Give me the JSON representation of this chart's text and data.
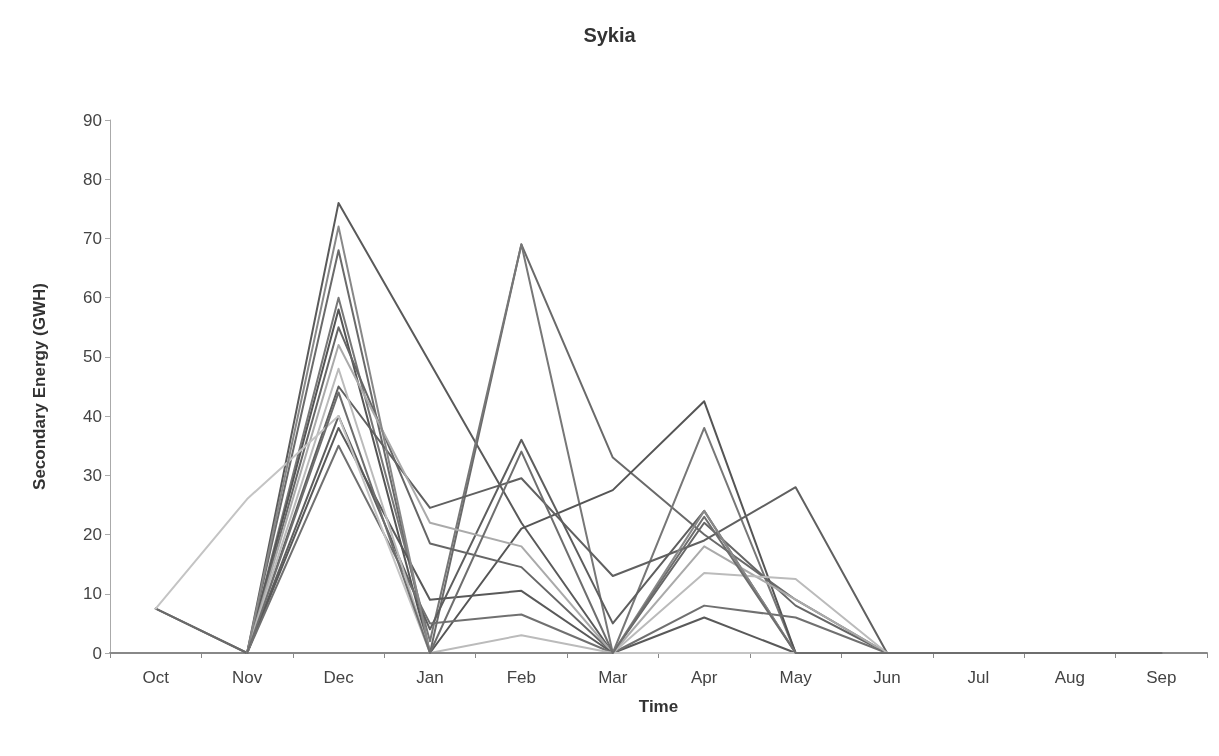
{
  "chart_data": {
    "type": "line",
    "title": "Sykia",
    "xlabel": "Time",
    "ylabel": "Secondary Energy (GWH)",
    "categories": [
      "Oct",
      "Nov",
      "Dec",
      "Jan",
      "Feb",
      "Mar",
      "Apr",
      "May",
      "Jun",
      "Jul",
      "Aug",
      "Sep"
    ],
    "ylim": [
      0,
      90
    ],
    "yticks": [
      0,
      10,
      20,
      30,
      40,
      50,
      60,
      70,
      80,
      90
    ],
    "grid": false,
    "marker": "none",
    "line_style": "solid",
    "series": [
      {
        "color": "#5a5a5a",
        "values": [
          7.5,
          0,
          76,
          49,
          22,
          0,
          0,
          0,
          0,
          0,
          0,
          0
        ]
      },
      {
        "color": "#6a6a6a",
        "values": [
          7.5,
          0,
          68,
          0,
          69,
          33,
          20,
          9,
          0,
          0,
          0,
          0
        ]
      },
      {
        "color": "#777777",
        "values": [
          null,
          0,
          60,
          2,
          69,
          0,
          38,
          0,
          0,
          0,
          0,
          0
        ]
      },
      {
        "color": "#555555",
        "values": [
          null,
          0,
          58,
          0,
          21,
          27.5,
          42.5,
          0,
          0,
          0,
          0,
          0
        ]
      },
      {
        "color": "#606060",
        "values": [
          null,
          0,
          45,
          24.5,
          29.5,
          13,
          19,
          28,
          0,
          0,
          0,
          0
        ]
      },
      {
        "color": "#5e5e5e",
        "values": [
          null,
          0,
          40,
          4,
          36,
          5,
          24,
          0,
          0,
          0,
          0,
          0
        ]
      },
      {
        "color": "#666666",
        "values": [
          null,
          0,
          55,
          18.5,
          14.5,
          0,
          22,
          8,
          0,
          0,
          0,
          0
        ]
      },
      {
        "color": "#aaaaaa",
        "values": [
          null,
          0,
          52,
          22,
          18,
          0,
          18,
          9,
          0,
          0,
          0,
          0
        ]
      },
      {
        "color": "#595959",
        "values": [
          null,
          0,
          38,
          9,
          10.5,
          0,
          6,
          0,
          0,
          0,
          0,
          0
        ]
      },
      {
        "color": "#707070",
        "values": [
          null,
          0,
          35,
          5,
          6.5,
          0,
          8,
          6,
          0,
          0,
          0,
          0
        ]
      },
      {
        "color": "#bbbbbb",
        "values": [
          null,
          0,
          48,
          0,
          3,
          0,
          13.5,
          12.5,
          0,
          0,
          0,
          0
        ]
      },
      {
        "color": "#c4c4c4",
        "values": [
          7.5,
          26,
          40,
          0,
          0,
          0,
          0,
          0,
          0,
          0,
          0,
          0
        ]
      },
      {
        "color": "#888888",
        "values": [
          null,
          0,
          72,
          0,
          0,
          0,
          24,
          0,
          0,
          0,
          0,
          0
        ]
      },
      {
        "color": "#6e6e6e",
        "values": [
          null,
          0,
          44,
          0,
          34,
          0,
          23,
          0,
          0,
          0,
          0,
          0
        ]
      }
    ]
  }
}
